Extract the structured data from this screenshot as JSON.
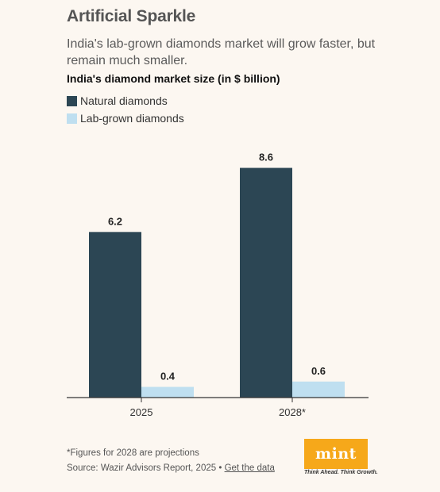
{
  "title": "Artificial Sparkle",
  "subtitle": "India's lab-grown diamonds market will grow faster, but remain much smaller.",
  "chart_label": "India's diamond market size (in $ billion)",
  "chart_data": {
    "type": "bar",
    "categories": [
      "2025",
      "2028*"
    ],
    "series": [
      {
        "name": "Natural diamonds",
        "values": [
          6.2,
          8.6
        ],
        "color": "#2c4654"
      },
      {
        "name": "Lab-grown diamonds",
        "values": [
          0.4,
          0.6
        ],
        "color": "#bfdff0"
      }
    ],
    "ylim": [
      0,
      9.3
    ],
    "data_labels": true,
    "legend_position": "top-left"
  },
  "footnote": "*Figures for 2028 are projections",
  "source_text": "Source: Wazir Advisors Report, 2025 •",
  "source_link": "Get the data",
  "logo": {
    "text": "mint",
    "tagline": "Think Ahead. Think Growth.",
    "color": "#f6a81a"
  }
}
